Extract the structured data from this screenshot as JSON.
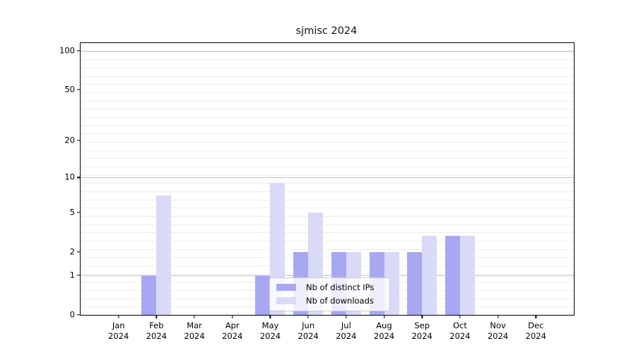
{
  "chart_data": {
    "type": "bar",
    "title": "sjmisc 2024",
    "categories": [
      "Jan",
      "Feb",
      "Mar",
      "Apr",
      "May",
      "Jun",
      "Jul",
      "Aug",
      "Sep",
      "Oct",
      "Nov",
      "Dec"
    ],
    "x_year_label": "2024",
    "series": [
      {
        "name": "Nb of distinct IPs",
        "color": "#a8a8f2",
        "values": [
          0,
          1,
          0,
          0,
          1,
          2,
          2,
          2,
          2,
          3,
          0,
          0
        ]
      },
      {
        "name": "Nb of downloads",
        "color": "#d9d9f8",
        "values": [
          0,
          7,
          0,
          0,
          9,
          5,
          2,
          2,
          3,
          3,
          0,
          0
        ]
      }
    ],
    "y_ticks": [
      0,
      1,
      2,
      5,
      10,
      20,
      50,
      100
    ],
    "y_scale": "log1p",
    "ylim": [
      0,
      115
    ],
    "major_gridline_values": [
      1,
      10,
      100
    ],
    "grid": true,
    "legend_position": "lower center",
    "colors": {
      "major_grid": "#c3c3c3",
      "minor_grid": "#ececec",
      "axis": "#000000",
      "legend_border": "#cccccc"
    }
  }
}
